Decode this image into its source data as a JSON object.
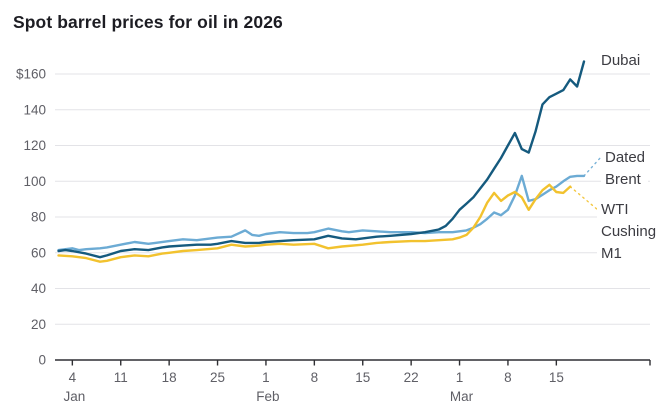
{
  "title": "Spot barrel prices for oil in 2026",
  "colors": {
    "title_text": "#1d1d23",
    "axis_text": "#5f5f66",
    "gridline": "#e3e3e7",
    "axis_line": "#2f2f33",
    "series_dubai": "#155a7e",
    "series_brent": "#6cabd4",
    "series_wti": "#f2c22e"
  },
  "chart_data": {
    "type": "line",
    "title": "Spot barrel prices for oil in 2026",
    "currency": "USD per barrel",
    "grid": "horizontal",
    "legend_position": "line-end-labels",
    "point_format": "[day_of_year_2026, usd_per_barrel]",
    "y_axis": {
      "min": 0,
      "max": 160,
      "step": 20,
      "tick_labels": [
        "0",
        "20",
        "40",
        "60",
        "80",
        "100",
        "120",
        "140",
        "$160"
      ]
    },
    "x_axis": {
      "unit": "date in 2026 (day of year, Jan 1 = 1)",
      "ticks": [
        {
          "day": 4,
          "label": "4",
          "month": "Jan"
        },
        {
          "day": 11,
          "label": "11"
        },
        {
          "day": 18,
          "label": "18"
        },
        {
          "day": 25,
          "label": "25"
        },
        {
          "day": 32,
          "label": "1",
          "month": "Feb"
        },
        {
          "day": 39,
          "label": "8"
        },
        {
          "day": 46,
          "label": "15"
        },
        {
          "day": 53,
          "label": "22"
        },
        {
          "day": 60,
          "label": "1",
          "month": "Mar"
        },
        {
          "day": 67,
          "label": "8"
        },
        {
          "day": 74,
          "label": "15"
        }
      ]
    },
    "series": [
      {
        "name": "Dated Brent",
        "label_lines": [
          "Dated",
          "Brent"
        ],
        "color": "#6cabd4",
        "leader": true,
        "points": [
          [
            2,
            61.5
          ],
          [
            4,
            62.5
          ],
          [
            5,
            61.5
          ],
          [
            6,
            62
          ],
          [
            8,
            62.5
          ],
          [
            9,
            63
          ],
          [
            11,
            64.5
          ],
          [
            13,
            66
          ],
          [
            15,
            65
          ],
          [
            16,
            65.5
          ],
          [
            18,
            66.5
          ],
          [
            20,
            67.5
          ],
          [
            22,
            67
          ],
          [
            24,
            68
          ],
          [
            25,
            68.5
          ],
          [
            27,
            69
          ],
          [
            29,
            72.5
          ],
          [
            30,
            70
          ],
          [
            31,
            69.5
          ],
          [
            32,
            70.5
          ],
          [
            34,
            71.5
          ],
          [
            36,
            71
          ],
          [
            38,
            71
          ],
          [
            39,
            71.5
          ],
          [
            41,
            73.5
          ],
          [
            43,
            72
          ],
          [
            44,
            71.5
          ],
          [
            46,
            72.5
          ],
          [
            48,
            72
          ],
          [
            50,
            71.5
          ],
          [
            53,
            71.5
          ],
          [
            55,
            71
          ],
          [
            57,
            71.5
          ],
          [
            59,
            71.5
          ],
          [
            60,
            72
          ],
          [
            61,
            72.5
          ],
          [
            62,
            74
          ],
          [
            63,
            76
          ],
          [
            64,
            79
          ],
          [
            65,
            82.5
          ],
          [
            66,
            81
          ],
          [
            67,
            84
          ],
          [
            68,
            92
          ],
          [
            69,
            103
          ],
          [
            70,
            89
          ],
          [
            71,
            90
          ],
          [
            72,
            92.5
          ],
          [
            73,
            95
          ],
          [
            74,
            97
          ],
          [
            75,
            100
          ],
          [
            76,
            102.5
          ],
          [
            77,
            103
          ],
          [
            78,
            103
          ]
        ]
      },
      {
        "name": "WTI Cushing M1",
        "label_lines": [
          "WTI",
          "Cushing",
          "M1"
        ],
        "color": "#f2c22e",
        "leader": true,
        "points": [
          [
            2,
            58.5
          ],
          [
            4,
            58
          ],
          [
            6,
            57
          ],
          [
            8,
            55
          ],
          [
            9,
            55.5
          ],
          [
            11,
            57.5
          ],
          [
            13,
            58.5
          ],
          [
            15,
            58
          ],
          [
            17,
            59.5
          ],
          [
            18,
            60
          ],
          [
            20,
            61
          ],
          [
            22,
            61.5
          ],
          [
            25,
            62.5
          ],
          [
            27,
            64.5
          ],
          [
            29,
            63.5
          ],
          [
            31,
            64
          ],
          [
            32,
            64.5
          ],
          [
            34,
            65
          ],
          [
            36,
            64.5
          ],
          [
            39,
            65
          ],
          [
            41,
            62.5
          ],
          [
            43,
            63.5
          ],
          [
            46,
            64.5
          ],
          [
            48,
            65.5
          ],
          [
            50,
            66
          ],
          [
            53,
            66.5
          ],
          [
            55,
            66.5
          ],
          [
            57,
            67
          ],
          [
            59,
            67.5
          ],
          [
            60,
            68.5
          ],
          [
            61,
            70
          ],
          [
            62,
            74
          ],
          [
            63,
            80
          ],
          [
            64,
            88
          ],
          [
            65,
            93.5
          ],
          [
            66,
            89
          ],
          [
            67,
            92
          ],
          [
            68,
            94
          ],
          [
            69,
            91
          ],
          [
            70,
            84
          ],
          [
            71,
            90
          ],
          [
            72,
            95
          ],
          [
            73,
            98
          ],
          [
            74,
            94
          ],
          [
            75,
            93.5
          ],
          [
            76,
            97
          ]
        ]
      },
      {
        "name": "Dubai",
        "label_lines": [
          "Dubai"
        ],
        "color": "#155a7e",
        "leader": false,
        "points": [
          [
            2,
            61
          ],
          [
            3,
            61.5
          ],
          [
            4,
            61
          ],
          [
            6,
            59.5
          ],
          [
            8,
            57.5
          ],
          [
            9,
            58.5
          ],
          [
            11,
            61
          ],
          [
            13,
            62
          ],
          [
            15,
            61.5
          ],
          [
            17,
            63
          ],
          [
            18,
            63.5
          ],
          [
            20,
            64
          ],
          [
            22,
            64.5
          ],
          [
            24,
            64.5
          ],
          [
            25,
            65
          ],
          [
            27,
            66.5
          ],
          [
            29,
            65.5
          ],
          [
            31,
            65.5
          ],
          [
            32,
            66
          ],
          [
            34,
            66.5
          ],
          [
            36,
            67
          ],
          [
            39,
            67.5
          ],
          [
            41,
            69.5
          ],
          [
            43,
            68
          ],
          [
            45,
            67.5
          ],
          [
            46,
            68
          ],
          [
            48,
            69
          ],
          [
            50,
            69.5
          ],
          [
            53,
            70.5
          ],
          [
            55,
            71.5
          ],
          [
            57,
            73
          ],
          [
            58,
            75
          ],
          [
            59,
            79
          ],
          [
            60,
            84
          ],
          [
            61,
            87.5
          ],
          [
            62,
            91
          ],
          [
            63,
            96
          ],
          [
            64,
            101
          ],
          [
            65,
            107
          ],
          [
            66,
            113
          ],
          [
            67,
            120
          ],
          [
            68,
            127
          ],
          [
            69,
            118
          ],
          [
            70,
            116
          ],
          [
            71,
            128
          ],
          [
            72,
            143
          ],
          [
            73,
            147
          ],
          [
            74,
            149
          ],
          [
            75,
            151
          ],
          [
            76,
            157
          ],
          [
            77,
            153
          ],
          [
            78,
            167
          ]
        ]
      }
    ]
  }
}
